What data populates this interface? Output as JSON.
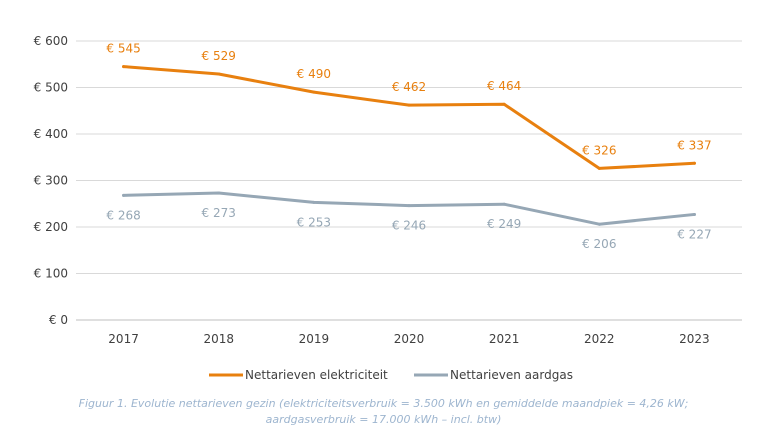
{
  "chart_data": {
    "type": "line",
    "categories": [
      "2017",
      "2018",
      "2019",
      "2020",
      "2021",
      "2022",
      "2023"
    ],
    "ylim": [
      0,
      600
    ],
    "yticks": [
      0,
      100,
      200,
      300,
      400,
      500,
      600
    ],
    "ytick_labels": [
      "€ 0",
      "€ 100",
      "€ 200",
      "€ 300",
      "€ 400",
      "€ 500",
      "€ 600"
    ],
    "grid": true,
    "legend_position": "bottom",
    "series": [
      {
        "name": "Nettarieven elektriciteit",
        "color": "#e8800f",
        "values": [
          545,
          529,
          490,
          462,
          464,
          326,
          337
        ],
        "labels": [
          "€ 545",
          "€ 529",
          "€ 490",
          "€ 462",
          "€ 464",
          "€ 326",
          "€ 337"
        ],
        "label_position": "above"
      },
      {
        "name": "Nettarieven aardgas",
        "color": "#96a7b5",
        "values": [
          268,
          273,
          253,
          246,
          249,
          206,
          227
        ],
        "labels": [
          "€ 268",
          "€ 273",
          "€ 253",
          "€ 246",
          "€ 249",
          "€ 206",
          "€ 227"
        ],
        "label_position": "below"
      }
    ]
  },
  "caption": {
    "line1": "Figuur 1. Evolutie nettarieven gezin (elektriciteitsverbruik = 3.500 kWh en gemiddelde maandpiek = 4,26 kW;",
    "line2": "aardgasverbruik = 17.000 kWh – incl. btw)"
  }
}
